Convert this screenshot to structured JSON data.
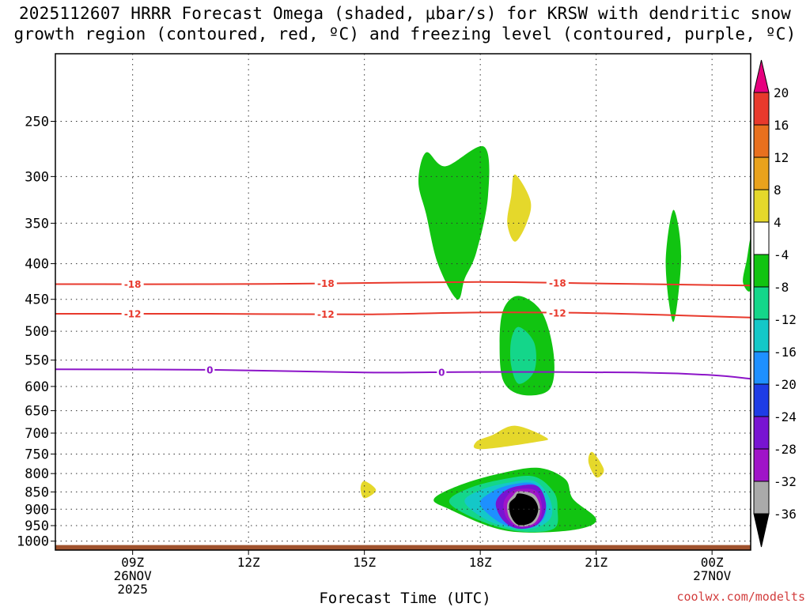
{
  "title": {
    "line1": "2025112607 HRRR Forecast Omega (shaded, μbar/s) for KRSW with dendritic snow",
    "line2": "growth region (contoured, red, ºC) and freezing level (contoured, purple, ºC)"
  },
  "watermark": "coolwx.com/modelts",
  "chart_data": {
    "type": "heatmap",
    "model": "HRRR",
    "init": "2025112607",
    "station": "KRSW",
    "variable": "Omega (μbar/s)",
    "xlabel": "Forecast Time (UTC)",
    "ylabel": "Pressure (hPa)",
    "x_range_hours_from_init": [
      0,
      18
    ],
    "y_range_hpa": [
      200,
      1030
    ],
    "y_scale": "log",
    "y_ticks": [
      250,
      300,
      350,
      400,
      450,
      500,
      550,
      600,
      650,
      700,
      750,
      800,
      850,
      900,
      950,
      1000
    ],
    "x_ticks": [
      {
        "hour": 2,
        "lines": [
          "09Z",
          "26NOV",
          "2025"
        ]
      },
      {
        "hour": 5,
        "lines": [
          "12Z"
        ]
      },
      {
        "hour": 8,
        "lines": [
          "15Z"
        ]
      },
      {
        "hour": 11,
        "lines": [
          "18Z"
        ]
      },
      {
        "hour": 14,
        "lines": [
          "21Z"
        ]
      },
      {
        "hour": 17,
        "lines": [
          "00Z",
          "27NOV"
        ]
      }
    ],
    "grid": true,
    "colorbar": {
      "levels": [
        20,
        16,
        12,
        8,
        4,
        -4,
        -8,
        -12,
        -16,
        -20,
        -24,
        -28,
        -32,
        -36
      ],
      "colors": [
        "#e6007e",
        "#e8392c",
        "#e8701e",
        "#e9a21c",
        "#e5d82b",
        "#ffffff",
        "#11c411",
        "#14d68a",
        "#14c8c8",
        "#1e90ff",
        "#1e3ce6",
        "#7814d2",
        "#a014c8",
        "#aaaaaa",
        "#000000"
      ]
    },
    "isotherms": [
      {
        "value": -18,
        "label": "-18",
        "color": "#e8392c",
        "points": [
          [
            0,
            428
          ],
          [
            4,
            428
          ],
          [
            7,
            427
          ],
          [
            11,
            425
          ],
          [
            14,
            427
          ],
          [
            18,
            430
          ]
        ],
        "label_hours": [
          2,
          7,
          13
        ]
      },
      {
        "value": -12,
        "label": "-12",
        "color": "#e8392c",
        "points": [
          [
            0,
            472
          ],
          [
            4,
            472
          ],
          [
            8,
            473
          ],
          [
            11,
            470
          ],
          [
            14,
            471
          ],
          [
            18,
            478
          ]
        ],
        "label_hours": [
          2,
          7,
          13
        ]
      },
      {
        "value": 0,
        "label": "0",
        "color": "#8c14c8",
        "points": [
          [
            0,
            567
          ],
          [
            4,
            568
          ],
          [
            8,
            573
          ],
          [
            11,
            572
          ],
          [
            15,
            573
          ],
          [
            17,
            578
          ],
          [
            18,
            585
          ]
        ],
        "label_hours": [
          4,
          10
        ]
      }
    ],
    "omega_features": [
      {
        "category": "-4 to -8",
        "color": "#11c411",
        "outline": [
          [
            9.6,
            277
          ],
          [
            10.1,
            290
          ],
          [
            11.1,
            272
          ],
          [
            11.2,
            320
          ],
          [
            10.9,
            385
          ],
          [
            10.6,
            420
          ],
          [
            10.4,
            450
          ],
          [
            9.9,
            400
          ],
          [
            9.6,
            340
          ],
          [
            9.4,
            305
          ]
        ]
      },
      {
        "category": "4 to 8",
        "color": "#e5d82b",
        "outline": [
          [
            11.9,
            298
          ],
          [
            12.3,
            325
          ],
          [
            12.2,
            350
          ],
          [
            11.9,
            372
          ],
          [
            11.7,
            350
          ],
          [
            11.8,
            320
          ]
        ]
      },
      {
        "category": "-4 to -8",
        "color": "#11c411",
        "outline": [
          [
            16.0,
            335
          ],
          [
            16.2,
            390
          ],
          [
            16.0,
            485
          ],
          [
            15.8,
            400
          ]
        ]
      },
      {
        "category": "-4 to -8",
        "color": "#11c411",
        "outline": [
          [
            18.0,
            370
          ],
          [
            18.0,
            435
          ],
          [
            17.8,
            425
          ],
          [
            17.9,
            395
          ]
        ]
      },
      {
        "category": "-4 to -8",
        "color": "#11c411",
        "outline": [
          [
            12.0,
            445
          ],
          [
            12.6,
            470
          ],
          [
            12.9,
            540
          ],
          [
            12.8,
            605
          ],
          [
            12.1,
            617
          ],
          [
            11.6,
            590
          ],
          [
            11.5,
            520
          ],
          [
            11.6,
            465
          ]
        ]
      },
      {
        "category": "-8 to -12",
        "color": "#14d68a",
        "outline": [
          [
            12.0,
            493
          ],
          [
            12.4,
            520
          ],
          [
            12.4,
            570
          ],
          [
            12.0,
            595
          ],
          [
            11.8,
            560
          ],
          [
            11.8,
            515
          ]
        ]
      },
      {
        "category": "4 to 8",
        "color": "#e5d82b",
        "outline": [
          [
            11.9,
            683
          ],
          [
            12.7,
            710
          ],
          [
            12.5,
            720
          ],
          [
            11.0,
            738
          ],
          [
            10.9,
            720
          ],
          [
            11.3,
            705
          ]
        ]
      },
      {
        "category": "4 to 8",
        "color": "#e5d82b",
        "outline": [
          [
            13.9,
            745
          ],
          [
            14.2,
            790
          ],
          [
            14.0,
            810
          ],
          [
            13.8,
            770
          ]
        ]
      },
      {
        "category": "4 to 8",
        "color": "#e5d82b",
        "outline": [
          [
            8.0,
            820
          ],
          [
            8.3,
            845
          ],
          [
            8.0,
            868
          ],
          [
            7.9,
            840
          ]
        ]
      },
      {
        "category": "-4 to -8",
        "color": "#11c411",
        "outline": [
          [
            11.5,
            800
          ],
          [
            12.5,
            785
          ],
          [
            13.2,
            815
          ],
          [
            13.4,
            870
          ],
          [
            14.0,
            930
          ],
          [
            13.5,
            962
          ],
          [
            12.2,
            972
          ],
          [
            11.3,
            955
          ],
          [
            10.2,
            900
          ],
          [
            9.8,
            870
          ],
          [
            10.5,
            830
          ]
        ]
      },
      {
        "category": "-8 to -12",
        "color": "#14d68a",
        "outline": [
          [
            11.6,
            815
          ],
          [
            12.4,
            808
          ],
          [
            12.9,
            850
          ],
          [
            13.0,
            900
          ],
          [
            12.9,
            960
          ],
          [
            12.0,
            968
          ],
          [
            11.0,
            935
          ],
          [
            10.2,
            880
          ],
          [
            10.7,
            840
          ]
        ]
      },
      {
        "category": "-12 to -16",
        "color": "#14c8c8",
        "outline": [
          [
            11.7,
            825
          ],
          [
            12.4,
            820
          ],
          [
            12.8,
            870
          ],
          [
            12.8,
            930
          ],
          [
            12.2,
            962
          ],
          [
            11.3,
            940
          ],
          [
            10.6,
            880
          ],
          [
            11.0,
            845
          ]
        ]
      },
      {
        "category": "-16 to -20",
        "color": "#1e90ff",
        "outline": [
          [
            11.8,
            830
          ],
          [
            12.4,
            828
          ],
          [
            12.7,
            880
          ],
          [
            12.6,
            935
          ],
          [
            12.1,
            958
          ],
          [
            11.5,
            940
          ],
          [
            11.0,
            885
          ],
          [
            11.3,
            850
          ]
        ]
      },
      {
        "category": "-24 to -28",
        "color": "#7814d2",
        "outline": [
          [
            12.0,
            833
          ],
          [
            12.5,
            835
          ],
          [
            12.7,
            890
          ],
          [
            12.5,
            945
          ],
          [
            12.0,
            960
          ],
          [
            11.6,
            935
          ],
          [
            11.4,
            885
          ],
          [
            11.6,
            850
          ]
        ]
      },
      {
        "category": "-28 to -32",
        "color": "#a014c8",
        "outline": [
          [
            12.0,
            842
          ],
          [
            12.45,
            848
          ],
          [
            12.6,
            900
          ],
          [
            12.45,
            945
          ],
          [
            12.0,
            955
          ],
          [
            11.7,
            930
          ],
          [
            11.6,
            885
          ],
          [
            11.75,
            855
          ]
        ]
      },
      {
        "category": "-32 to -36",
        "color": "#aaaaaa",
        "outline": [
          [
            12.0,
            848
          ],
          [
            12.4,
            858
          ],
          [
            12.55,
            900
          ],
          [
            12.4,
            942
          ],
          [
            12.0,
            952
          ],
          [
            11.75,
            925
          ],
          [
            11.7,
            885
          ],
          [
            11.85,
            860
          ]
        ]
      },
      {
        "category": "< -36",
        "color": "#000000",
        "outline": [
          [
            12.0,
            854
          ],
          [
            12.35,
            866
          ],
          [
            12.5,
            900
          ],
          [
            12.35,
            938
          ],
          [
            12.0,
            948
          ],
          [
            11.8,
            922
          ],
          [
            11.75,
            885
          ],
          [
            11.9,
            866
          ]
        ]
      }
    ],
    "surface": {
      "color": "#a0522d",
      "pressure_hpa": 1013
    }
  }
}
